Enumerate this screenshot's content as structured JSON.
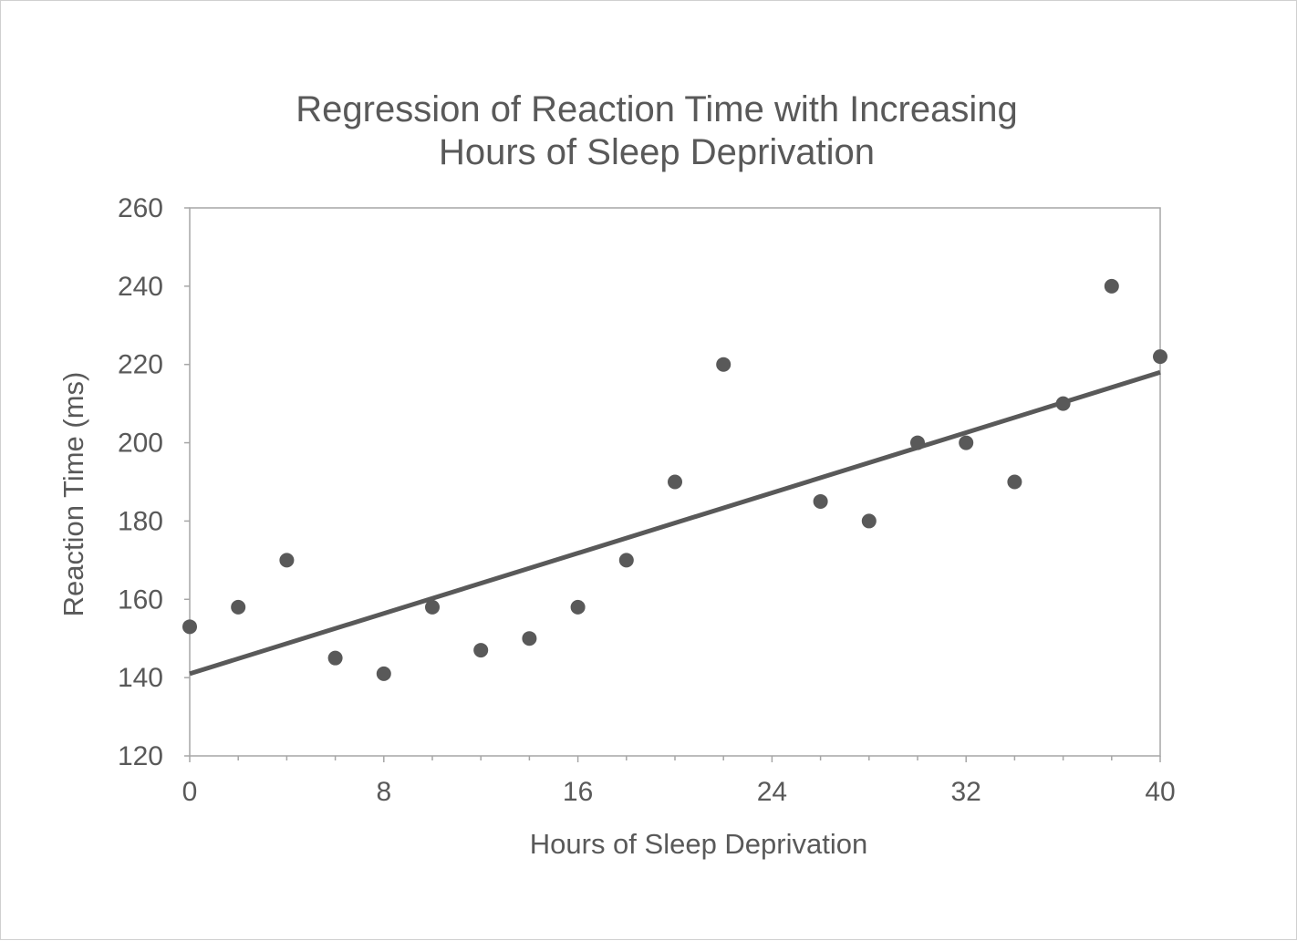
{
  "chart_data": {
    "type": "scatter",
    "title": [
      "Regression of Reaction Time with Increasing",
      "Hours of Sleep Deprivation"
    ],
    "xlabel": "Hours of Sleep Deprivation",
    "ylabel": "Reaction Time (ms)",
    "xlim": [
      0,
      40
    ],
    "ylim": [
      120,
      260
    ],
    "xticks": [
      0,
      8,
      16,
      24,
      32,
      40
    ],
    "yticks": [
      120,
      140,
      160,
      180,
      200,
      220,
      240,
      260
    ],
    "grid": false,
    "legend": "none",
    "series": [
      {
        "points": [
          {
            "x": 0,
            "y": 153
          },
          {
            "x": 2,
            "y": 158
          },
          {
            "x": 4,
            "y": 170
          },
          {
            "x": 6,
            "y": 145
          },
          {
            "x": 8,
            "y": 141
          },
          {
            "x": 10,
            "y": 158
          },
          {
            "x": 12,
            "y": 147
          },
          {
            "x": 14,
            "y": 150
          },
          {
            "x": 16,
            "y": 158
          },
          {
            "x": 18,
            "y": 170
          },
          {
            "x": 20,
            "y": 190
          },
          {
            "x": 22,
            "y": 220
          },
          {
            "x": 26,
            "y": 185
          },
          {
            "x": 28,
            "y": 180
          },
          {
            "x": 30,
            "y": 200
          },
          {
            "x": 32,
            "y": 200
          },
          {
            "x": 34,
            "y": 190
          },
          {
            "x": 36,
            "y": 210
          },
          {
            "x": 38,
            "y": 240
          },
          {
            "x": 40,
            "y": 222
          }
        ]
      }
    ],
    "trendline": {
      "type": "linear",
      "x": [
        0,
        40
      ],
      "y": [
        141,
        218
      ]
    },
    "colors": {
      "marker": "#595959",
      "line": "#595959",
      "axis": "#a6a6a6",
      "text": "#595959"
    }
  }
}
